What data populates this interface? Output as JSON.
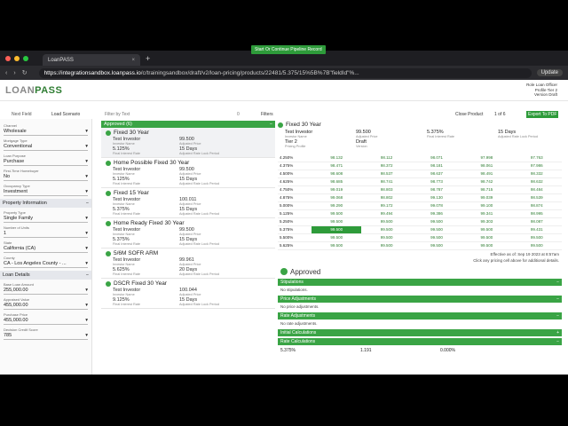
{
  "browser": {
    "tab_title": "LoanPASS",
    "url_domain": "https://integrationsandbox.loanpass.io",
    "url_path": "/c/trainingsandbox/draft/v2/loan-pricing/products/22481/5.375/15%5B%7B\"fieldId\"%...",
    "update_label": "Update"
  },
  "app": {
    "logo_main": "LOAN",
    "logo_accent": "PASS",
    "role_line1": "Role Loan Officer",
    "role_line2": "Profile Tier 2",
    "role_line3": "Version Draft",
    "pipeline_button": "Start Or Continue Pipeline Record"
  },
  "toolbar": {
    "next_field": "Next Field",
    "load_scenario": "Load Scenario",
    "filter_placeholder": "Filter by Text",
    "filter_count": "0",
    "filters": "Filters",
    "close_product": "Close Product",
    "page": "1 of 6",
    "export": "Export To PDF"
  },
  "sidebar": {
    "fields": [
      {
        "label": "Channel",
        "value": "Wholesale"
      },
      {
        "label": "Mortgage Type",
        "value": "Conventional"
      },
      {
        "label": "Loan Purpose",
        "value": "Purchase"
      },
      {
        "label": "First-Time Homebuyer",
        "value": "No"
      },
      {
        "label": "Occupancy Type",
        "value": "Investment"
      }
    ],
    "property_section": "Property Information",
    "property_fields": [
      {
        "label": "Property Type",
        "value": "Single Family"
      },
      {
        "label": "Number of Units",
        "value": "1"
      },
      {
        "label": "State",
        "value": "California (CA)"
      },
      {
        "label": "County",
        "value": "CA - Los Angeles County - ..."
      }
    ],
    "loan_section": "Loan Details",
    "loan_fields": [
      {
        "label": "Base Loan Amount",
        "value": "255,000.00"
      },
      {
        "label": "Appraised Value",
        "value": "455,000.00"
      },
      {
        "label": "Purchase Price",
        "value": "455,000.00"
      },
      {
        "label": "Decision Credit Score",
        "value": "785"
      }
    ]
  },
  "products": {
    "header": "Approved (6)",
    "items": [
      {
        "name": "Fixed 30 Year",
        "investor": "Test Investor",
        "price": "99.500",
        "rate": "5.125%",
        "lock": "15 Days",
        "selected": true
      },
      {
        "name": "Home Possible Fixed 30 Year",
        "investor": "Test Investor",
        "price": "99.500",
        "rate": "5.125%",
        "lock": "15 Days",
        "selected": false
      },
      {
        "name": "Fixed 15 Year",
        "investor": "Test Investor",
        "price": "100.011",
        "rate": "5.375%",
        "lock": "15 Days",
        "selected": false
      },
      {
        "name": "Home Ready Fixed 30 Year",
        "investor": "Test Investor",
        "price": "99.500",
        "rate": "5.375%",
        "lock": "15 Days",
        "selected": false
      },
      {
        "name": "5/6M SOFR ARM",
        "investor": "Test Investor",
        "price": "99.961",
        "rate": "5.625%",
        "lock": "20 Days",
        "selected": false
      },
      {
        "name": "DSCR Fixed 30 Year",
        "investor": "Test Investor",
        "price": "100.044",
        "rate": "9.125%",
        "lock": "15 Days",
        "selected": false
      }
    ],
    "sub_labels": {
      "investor": "Investor Name",
      "price": "Adjusted Price",
      "rate": "Final Interest Rate",
      "lock": "Adjusted Rate Lock Period"
    }
  },
  "detail": {
    "title": "Fixed 30 Year",
    "investor": "Test Investor",
    "price": "99.500",
    "rate": "5.375%",
    "lock": "15 Days",
    "profile": "Tier 2",
    "version": "Draft",
    "labels": {
      "investor": "Investor Name",
      "price": "Adjusted Price",
      "rate": "Final Interest Rate",
      "lock": "Adjusted Rate Lock Period",
      "profile": "Pricing Profile",
      "version": "Version"
    },
    "grid": [
      [
        "4.250%",
        "98.132",
        "98.112",
        "98.071",
        "97.998",
        "97.763"
      ],
      [
        "4.375%",
        "98.471",
        "98.372",
        "98.181",
        "98.061",
        "97.986"
      ],
      [
        "4.500%",
        "98.608",
        "98.537",
        "98.637",
        "98.491",
        "98.332"
      ],
      [
        "4.625%",
        "98.685",
        "98.741",
        "98.773",
        "98.742",
        "98.632"
      ],
      [
        "4.750%",
        "99.019",
        "98.803",
        "98.787",
        "98.715",
        "98.484"
      ],
      [
        "4.875%",
        "99.068",
        "98.802",
        "99.130",
        "99.039",
        "98.539"
      ],
      [
        "5.000%",
        "99.290",
        "99.172",
        "99.078",
        "99.100",
        "98.874"
      ],
      [
        "5.125%",
        "99.500",
        "99.494",
        "99.386",
        "99.341",
        "98.995"
      ],
      [
        "5.250%",
        "99.500",
        "99.500",
        "99.500",
        "99.303",
        "98.087"
      ],
      [
        "5.375%",
        "99.500",
        "99.500",
        "99.500",
        "99.500",
        "99.431"
      ],
      [
        "5.500%",
        "99.500",
        "99.500",
        "99.500",
        "99.500",
        "99.500"
      ],
      [
        "5.625%",
        "99.500",
        "99.500",
        "99.500",
        "99.500",
        "99.500"
      ]
    ],
    "effective": "Effective as of: Sep 19 2023 at 8:57am",
    "click_note": "Click any pricing cell above for additional details.",
    "status": "Approved",
    "sections": [
      {
        "title": "Stipulations",
        "note": "No stipulations."
      },
      {
        "title": "Price Adjustments",
        "note": "No price adjustments."
      },
      {
        "title": "Rate Adjustments",
        "note": "No rate adjustments."
      },
      {
        "title": "Initial Calculations",
        "note": ""
      },
      {
        "title": "Rate Calculations",
        "note": ""
      }
    ],
    "calc_row": [
      "5.375%",
      "1.191",
      "0.000%"
    ]
  }
}
